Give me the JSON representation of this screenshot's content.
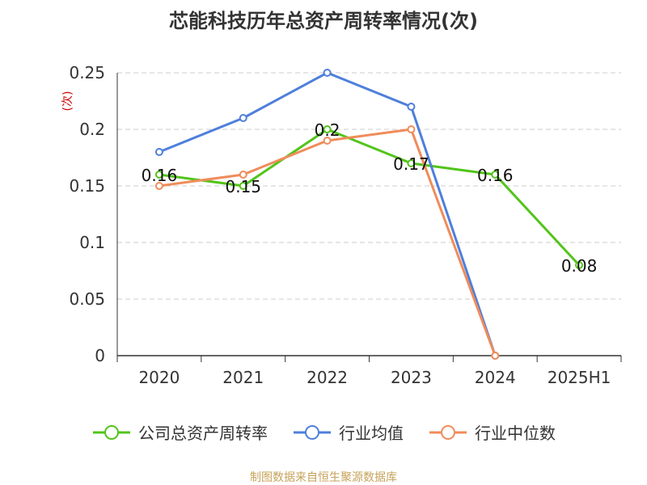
{
  "chart_data": {
    "type": "line",
    "title": "芯能科技历年总资产周转率情况(次)",
    "ylabel": "(次)",
    "categories": [
      "2020",
      "2021",
      "2022",
      "2023",
      "2024",
      "2025H1"
    ],
    "yticks": [
      "0",
      "0.05",
      "0.1",
      "0.15",
      "0.2",
      "0.25"
    ],
    "ylim": [
      0,
      0.25
    ],
    "grid": true,
    "legend_position": "bottom",
    "series": [
      {
        "name": "公司总资产周转率",
        "color": "#52c41a",
        "values": [
          0.16,
          0.15,
          0.2,
          0.17,
          0.16,
          0.08
        ],
        "labels": [
          "0.16",
          "0.15",
          "0.2",
          "0.17",
          "0.16",
          "0.08"
        ]
      },
      {
        "name": "行业均值",
        "color": "#4e7fdb",
        "values": [
          0.18,
          0.21,
          0.25,
          0.22,
          0,
          null
        ]
      },
      {
        "name": "行业中位数",
        "color": "#f08c5a",
        "values": [
          0.15,
          0.16,
          0.19,
          0.2,
          0,
          null
        ]
      }
    ]
  },
  "source": "制图数据来自恒生聚源数据库"
}
